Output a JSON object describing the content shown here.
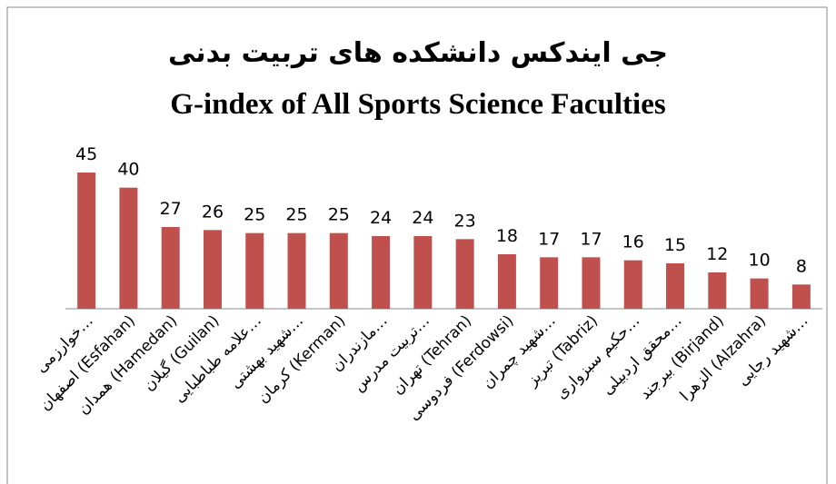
{
  "chart_data": {
    "type": "bar",
    "title": "جی ایندکس دانشکده های تربیت بدنی",
    "subtitle": "G-index of All Sports Science Faculties",
    "categories": [
      "خوارزمی…",
      "اصفهان (Esfahan)",
      "همدان (Hamedan)",
      "گیلان (Guilan)",
      "علامه طباطبایی…",
      "شهید بهشتی…",
      "کرمان (Kerman)",
      "مازندران…",
      "تربیت مدرس…",
      "تهران (Tehran)",
      "فردوسی (Ferdowsi)",
      "شهید چمران…",
      "تبریز (Tabriz)",
      "حکیم سبزواری…",
      "محقق اردبیلی…",
      "بیرجند (Birjand)",
      "الزهرا (Alzahra)",
      "شهید رجایی…"
    ],
    "values": [
      45,
      40,
      27,
      26,
      25,
      25,
      25,
      24,
      24,
      23,
      18,
      17,
      17,
      16,
      15,
      12,
      10,
      8
    ],
    "color": "#c0504d"
  }
}
